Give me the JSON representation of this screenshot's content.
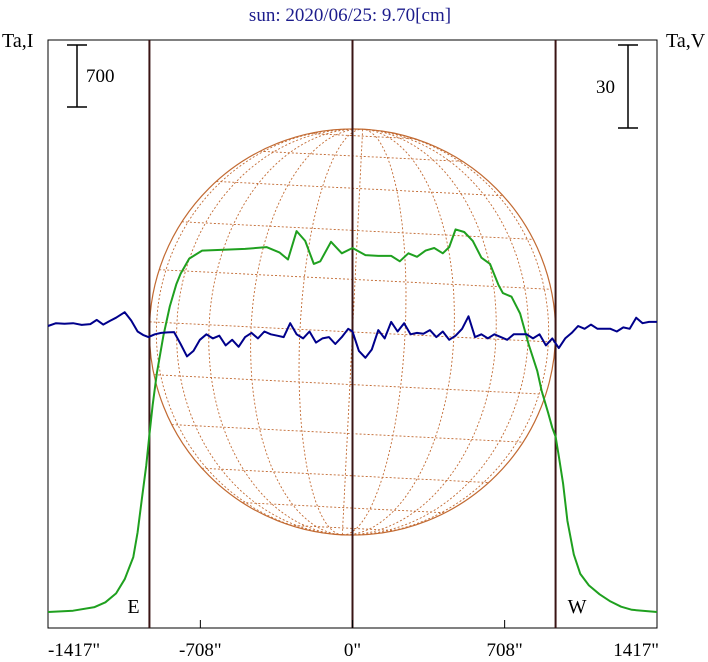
{
  "chart_data": {
    "type": "line",
    "title": "sun: 2020/06/25: 9.70[cm]",
    "left_axis_label": "Ta,I",
    "right_axis_label": "Ta,V",
    "left_scale_label": "700",
    "right_scale_label": "30",
    "x_ticks": [
      -1417,
      -708,
      0,
      708,
      1417
    ],
    "x_tick_labels": [
      "-1417\"",
      "-708\"",
      "0\"",
      "708\"",
      "1417\""
    ],
    "xlim": [
      -1417,
      1417
    ],
    "limb_markers": [
      {
        "label": "E",
        "x": -945
      },
      {
        "label": "W",
        "x": 945
      }
    ],
    "center_line_x": 0,
    "series": [
      {
        "key": "I",
        "color": "#1fa01f",
        "axis": "left",
        "x": [
          -1417,
          -1300,
          -1200,
          -1150,
          -1100,
          -1060,
          -1020,
          -1000,
          -980,
          -960,
          -945,
          -930,
          -910,
          -880,
          -850,
          -820,
          -800,
          -760,
          -700,
          -600,
          -500,
          -400,
          -340,
          -300,
          -260,
          -220,
          -180,
          -150,
          -100,
          -50,
          0,
          60,
          120,
          180,
          220,
          260,
          300,
          340,
          380,
          420,
          450,
          480,
          520,
          560,
          600,
          640,
          680,
          700,
          740,
          780,
          820,
          860,
          880,
          910,
          930,
          945,
          960,
          980,
          1000,
          1030,
          1060,
          1100,
          1150,
          1200,
          1250,
          1300,
          1417
        ],
        "y": [
          0,
          15,
          55,
          110,
          210,
          370,
          620,
          900,
          1280,
          1650,
          2000,
          2340,
          2700,
          3120,
          3450,
          3700,
          3820,
          3990,
          4080,
          4090,
          4100,
          4120,
          4060,
          3980,
          4300,
          4190,
          3930,
          3960,
          4180,
          4050,
          4110,
          4030,
          4020,
          4020,
          3960,
          4050,
          4010,
          4080,
          4110,
          4050,
          4120,
          4320,
          4290,
          4190,
          4000,
          3930,
          3690,
          3600,
          3560,
          3370,
          3020,
          2720,
          2500,
          2250,
          2080,
          1980,
          1760,
          1450,
          1030,
          650,
          430,
          300,
          200,
          120,
          60,
          25,
          0
        ]
      },
      {
        "key": "V",
        "color": "#00008b",
        "axis": "right",
        "x": [
          -1417,
          -1380,
          -1340,
          -1300,
          -1260,
          -1220,
          -1190,
          -1160,
          -1130,
          -1100,
          -1060,
          -1030,
          -1000,
          -975,
          -950,
          -920,
          -890,
          -860,
          -830,
          -800,
          -770,
          -740,
          -710,
          -680,
          -650,
          -620,
          -590,
          -560,
          -530,
          -500,
          -470,
          -440,
          -410,
          -380,
          -350,
          -320,
          -290,
          -260,
          -230,
          -200,
          -170,
          -140,
          -110,
          -80,
          -50,
          -20,
          0,
          30,
          60,
          90,
          120,
          150,
          180,
          210,
          240,
          270,
          300,
          330,
          360,
          390,
          420,
          450,
          480,
          510,
          540,
          570,
          600,
          630,
          660,
          690,
          720,
          750,
          780,
          810,
          840,
          870,
          900,
          930,
          960,
          990,
          1020,
          1050,
          1080,
          1110,
          1140,
          1170,
          1200,
          1230,
          1260,
          1290,
          1320,
          1350,
          1380,
          1417
        ],
        "y": [
          0,
          1.0,
          0.8,
          1.0,
          0.4,
          0.7,
          2.2,
          0.5,
          1.8,
          3.0,
          5.0,
          2.0,
          -2.0,
          -3.2,
          -4.0,
          -3.0,
          -2.5,
          -2.3,
          -2.2,
          -6.5,
          -11.0,
          -9.0,
          -5.0,
          -3.0,
          -4.5,
          -3.5,
          -7.0,
          -5.0,
          -7.5,
          -4.0,
          -2.5,
          -4.5,
          -2.0,
          -3.0,
          -3.5,
          -4.0,
          1.0,
          -3.0,
          -4.5,
          -2.0,
          -6.0,
          -4.5,
          -4.0,
          -6.5,
          -4.0,
          -1.0,
          -2.0,
          -9.0,
          -11.5,
          -8.5,
          -1.5,
          -4.5,
          1.5,
          -2.0,
          1.0,
          -3.0,
          -2.5,
          -2.8,
          -1.5,
          -4.0,
          -2.0,
          -5.0,
          -3.5,
          -1.0,
          3.5,
          -4.0,
          -3.0,
          -4.5,
          -3.0,
          -4.0,
          -5.0,
          -3.0,
          -3.0,
          -3.0,
          -4.5,
          -3.0,
          -7.0,
          -4.5,
          -8.0,
          -4.5,
          -2.5,
          0.0,
          -1.0,
          0.5,
          -1.0,
          -1.0,
          -1.0,
          -2.0,
          -0.5,
          -1.0,
          3.0,
          1.0,
          1.5,
          1.5
        ]
      }
    ]
  },
  "colors": {
    "title": "#1c1c8c",
    "grid": "#c26a32",
    "frame": "#000000",
    "vline": "#3a1414"
  }
}
